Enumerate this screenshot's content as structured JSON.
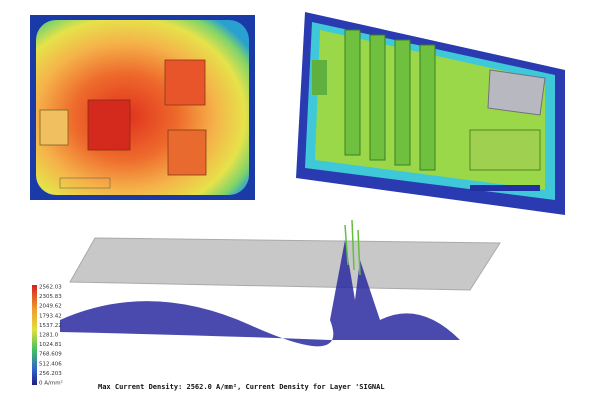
{
  "legend": {
    "labels": [
      "2562.03",
      "2305.83",
      "2049.62",
      "1793.42",
      "1537.22",
      "1281.0",
      "1024.81",
      "768.609",
      "512.406",
      "256.203",
      "0 A/mm²"
    ]
  },
  "caption": "Max Current Density: 2562.0 A/mm², Current Density for Layer 'SIGNAL"
}
